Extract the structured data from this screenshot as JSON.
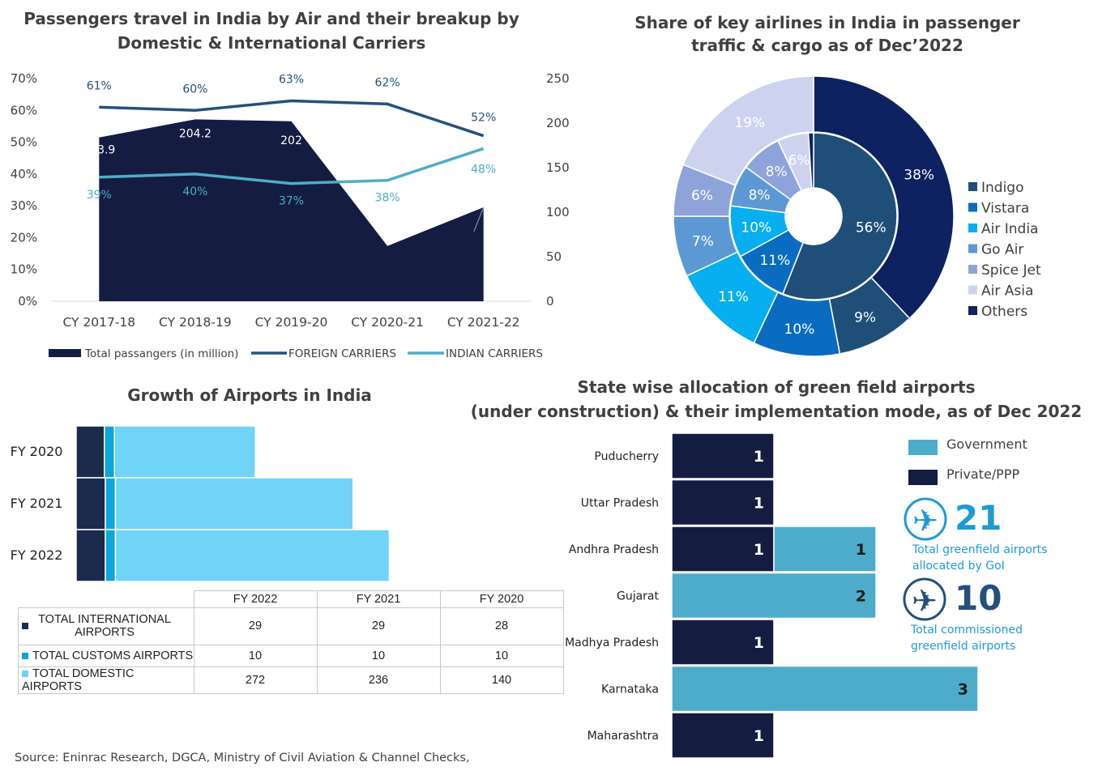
{
  "colors": {
    "navy": "#141c42",
    "foreign": "#24507e",
    "indian": "#4daec7",
    "intl": "#1b2a4d",
    "customs": "#0ea4de",
    "domestic": "#6fd4f7",
    "government": "#4dacc9",
    "private": "#141c42",
    "accent_blue": "#1e9bd7"
  },
  "passengers_chart": {
    "title_line1": "Passengers travel in India by Air and their breakup by",
    "title_line2": "Domestic & International Carriers",
    "left_ticks": [
      "0%",
      "10%",
      "20%",
      "30%",
      "40%",
      "50%",
      "60%",
      "70%"
    ],
    "right_ticks": [
      "0",
      "50",
      "100",
      "150",
      "200",
      "250"
    ],
    "legend": [
      "Total passangers (in million)",
      "FOREIGN CARRIERS",
      "INDIAN CARRIERS"
    ]
  },
  "airlines_chart": {
    "title_line1": "Share of key airlines in India in passenger",
    "title_line2": "traffic & cargo as of Dec’2022",
    "legend": [
      "Indigo",
      "Vistara",
      "Air India",
      "Go Air",
      "Spice Jet",
      "Air Asia",
      "Others"
    ]
  },
  "airports_chart": {
    "title": "Growth of Airports in India",
    "table_headers": [
      "FY 2022",
      "FY 2021",
      "FY 2020"
    ],
    "table_rows": [
      {
        "label": "TOTAL INTERNATIONAL AIRPORTS",
        "values": [
          "29",
          "29",
          "28"
        ]
      },
      {
        "label": "TOTAL CUSTOMS AIRPORTS",
        "values": [
          "10",
          "10",
          "10"
        ]
      },
      {
        "label": "TOTAL DOMESTIC AIRPORTS",
        "values": [
          "272",
          "236",
          "140"
        ]
      }
    ]
  },
  "greenfield_chart": {
    "title_line1": "State wise allocation of green field airports",
    "title_line2": "(under construction) & their implementation mode, as of Dec 2022",
    "legend": [
      "Government",
      "Private/PPP"
    ],
    "stat1_value": "21",
    "stat1_line1": "Total greenfield airports",
    "stat1_line2": "allocated by GoI",
    "stat2_value": "10",
    "stat2_line1": "Total commissioned",
    "stat2_line2": "greenfield airports"
  },
  "source": "Source: Eninrac Research, DGCA, Ministry of Civil Aviation & Channel Checks,",
  "chart_data": [
    {
      "type": "line",
      "title": "Passengers travel in India by Air and their breakup by Domestic & International Carriers",
      "categories": [
        "CY 2017-18",
        "CY 2018-19",
        "CY 2019-20",
        "CY 2020-21",
        "CY 2021-22"
      ],
      "series": [
        {
          "name": "Total passangers (in million)",
          "kind": "area",
          "axis": "right",
          "values": [
            183.9,
            204.2,
            202,
            62.1,
            105.4
          ]
        },
        {
          "name": "FOREIGN CARRIERS",
          "axis": "left",
          "values": [
            61,
            60,
            63,
            62,
            52
          ],
          "labels": [
            "61%",
            "60%",
            "63%",
            "62%",
            "52%"
          ]
        },
        {
          "name": "INDIAN CARRIERS",
          "axis": "left",
          "values": [
            39,
            40,
            37,
            38,
            48
          ],
          "labels": [
            "39%",
            "40%",
            "37%",
            "38%",
            "48%"
          ]
        }
      ],
      "ylim_left": [
        0,
        70
      ],
      "ylim_right": [
        0,
        250
      ],
      "legend_position": "bottom"
    },
    {
      "type": "pie",
      "title": "Share of key airlines in India in passenger traffic & cargo as of Dec’2022",
      "categories": [
        "Indigo",
        "Vistara",
        "Air India",
        "Go Air",
        "Spice Jet",
        "Air Asia",
        "Others"
      ],
      "series": [
        {
          "name": "outer",
          "values": [
            38,
            9,
            10,
            11,
            7,
            6,
            19
          ]
        },
        {
          "name": "inner",
          "values": [
            56,
            11,
            10,
            8,
            8,
            6,
            1
          ]
        }
      ],
      "legend_position": "right"
    },
    {
      "type": "bar",
      "orientation": "horizontal",
      "stacked": true,
      "title": "Growth of Airports in India",
      "categories": [
        "FY 2020",
        "FY 2021",
        "FY 2022"
      ],
      "series": [
        {
          "name": "TOTAL INTERNATIONAL AIRPORTS",
          "values": [
            28,
            29,
            29
          ]
        },
        {
          "name": "TOTAL CUSTOMS AIRPORTS",
          "values": [
            10,
            10,
            10
          ]
        },
        {
          "name": "TOTAL DOMESTIC AIRPORTS",
          "values": [
            140,
            236,
            272
          ]
        }
      ],
      "xlim": [
        0,
        375
      ]
    },
    {
      "type": "bar",
      "orientation": "horizontal",
      "stacked": true,
      "title": "State wise allocation of green field airports (under construction) & their implementation mode, as of Dec 2022",
      "categories": [
        "Puducherry",
        "Uttar Pradesh",
        "Andhra Pradesh",
        "Gujarat",
        "Madhya Pradesh",
        "Karnataka",
        "Maharashtra"
      ],
      "series": [
        {
          "name": "Private/PPP",
          "values": [
            1,
            1,
            1,
            0,
            1,
            0,
            1
          ]
        },
        {
          "name": "Government",
          "values": [
            0,
            0,
            1,
            2,
            0,
            3,
            0
          ]
        }
      ],
      "xlim": [
        0,
        4
      ]
    }
  ]
}
